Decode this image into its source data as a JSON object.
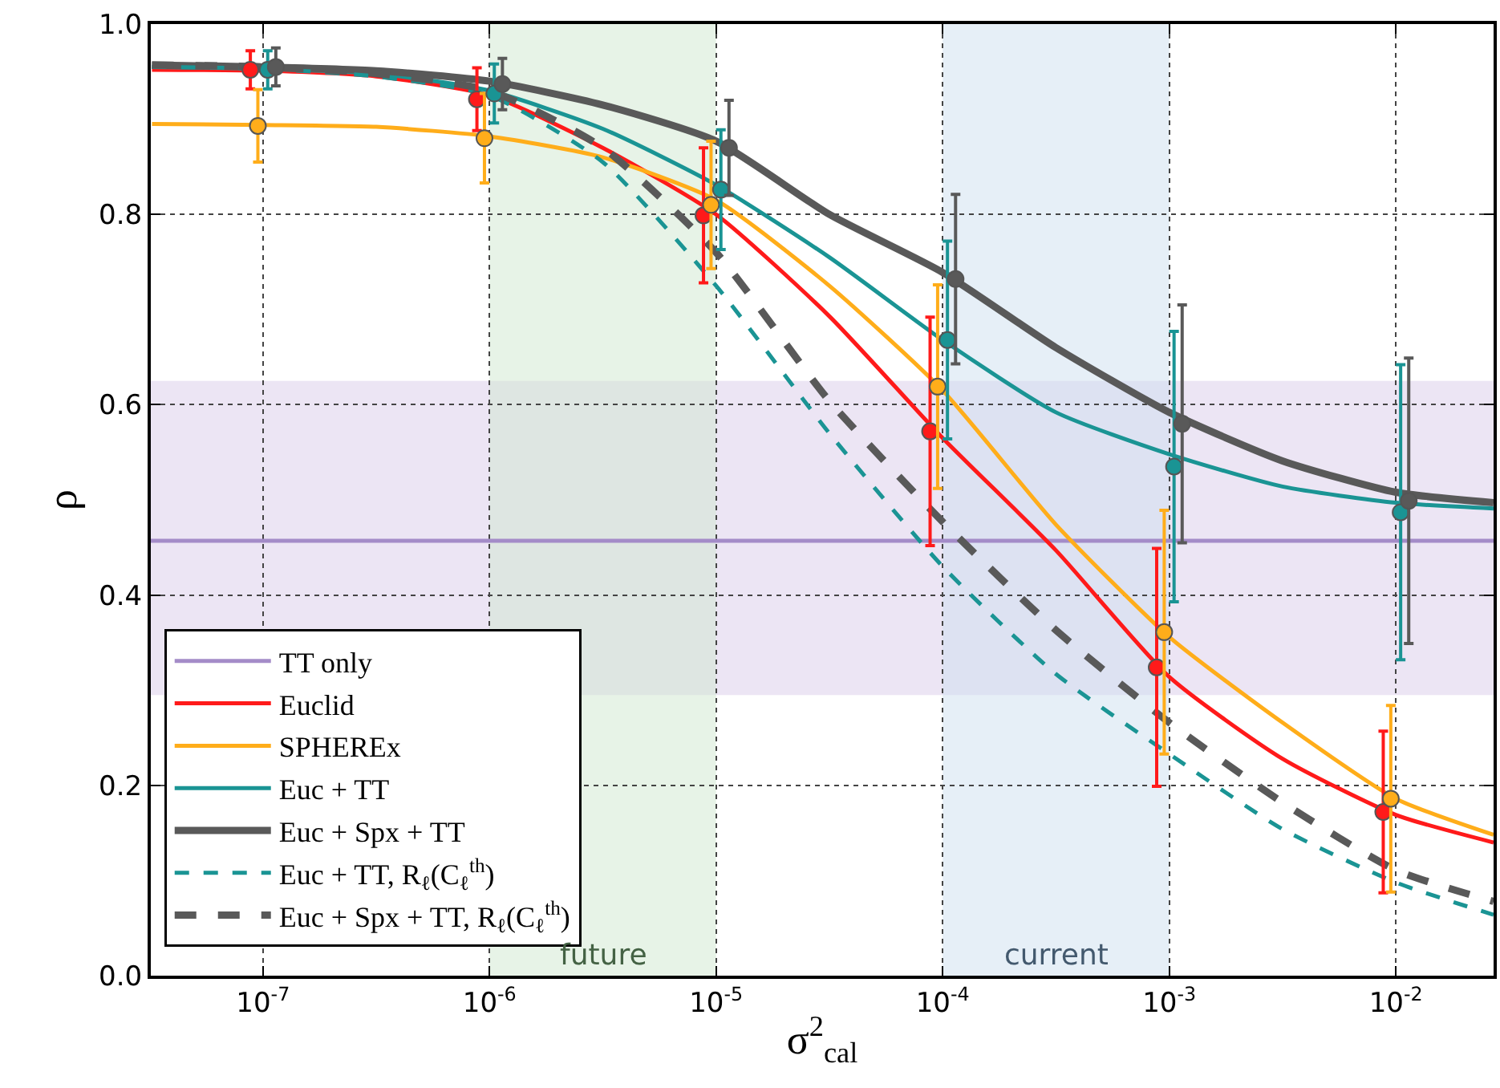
{
  "chart_data": {
    "type": "line",
    "xlabel": "σ$^{2}$$_{cal}$",
    "ylabel": "ρ",
    "log": "x",
    "xlim": [
      3.2e-08,
      0.027
    ],
    "xticks": [
      {
        "value": 1e-07,
        "label": "10$^{-7}$"
      },
      {
        "value": 1e-06,
        "label": "10$^{-6}$"
      },
      {
        "value": 1e-05,
        "label": "10$^{-5}$"
      },
      {
        "value": 0.0001,
        "label": "10$^{-4}$"
      },
      {
        "value": 0.001,
        "label": "10$^{-3}$"
      },
      {
        "value": 0.01,
        "label": "10$^{-2}$"
      }
    ],
    "ylim": [
      0,
      1
    ],
    "yticks": [
      {
        "value": 0,
        "label": "0.0"
      },
      {
        "value": 0.2,
        "label": "0.2"
      },
      {
        "value": 0.4,
        "label": "0.4"
      },
      {
        "value": 0.6,
        "label": "0.6"
      },
      {
        "value": 0.8,
        "label": "0.8"
      },
      {
        "value": 1,
        "label": "1.0"
      }
    ],
    "grid": true,
    "legend": "bottom left",
    "bands": [
      {
        "axis": "y",
        "from": 0.295,
        "to": 0.625,
        "color": "#d9cbe9"
      },
      {
        "axis": "x",
        "from": 1e-06,
        "to": 1e-05,
        "label": "future",
        "color": "#cfe8cf"
      },
      {
        "axis": "x",
        "from": 0.0001,
        "to": 0.001,
        "label": "current",
        "color": "#cddff0"
      }
    ],
    "series": [
      {
        "name": "TT only",
        "color": "#a48cc8",
        "line_style": "solid",
        "marker": "none",
        "x": [
          3.2e-08,
          0.027
        ],
        "values": [
          0.457,
          0.457
        ]
      },
      {
        "name": "Euclid",
        "color": "#ff1a1a",
        "line_style": "solid",
        "marker": "none",
        "x": [
          3.24e-08,
          1e-07,
          3.16e-07,
          1e-06,
          3.16e-06,
          1e-05,
          3.16e-05,
          0.0001,
          0.000316,
          0.001,
          0.00316,
          0.01,
          0.027
        ],
        "values": [
          0.952,
          0.951,
          0.945,
          0.925,
          0.87,
          0.8,
          0.693,
          0.565,
          0.447,
          0.314,
          0.228,
          0.169,
          0.14
        ]
      },
      {
        "name": "SPHEREx",
        "color": "#ffad1a",
        "line_style": "solid",
        "marker": "none",
        "x": [
          3.24e-08,
          1e-07,
          3.16e-07,
          1e-06,
          3.16e-06,
          1e-05,
          3.16e-05,
          0.0001,
          0.000316,
          0.001,
          0.00316,
          0.01,
          0.027
        ],
        "values": [
          0.895,
          0.894,
          0.892,
          0.882,
          0.86,
          0.815,
          0.725,
          0.615,
          0.474,
          0.356,
          0.266,
          0.186,
          0.148
        ]
      },
      {
        "name": "Euc + TT",
        "color": "#1a9494",
        "line_style": "solid",
        "marker": "none",
        "x": [
          3.24e-08,
          1e-07,
          3.16e-07,
          1e-06,
          3.16e-06,
          1e-05,
          3.16e-05,
          0.0001,
          0.000316,
          0.001,
          0.00316,
          0.01,
          0.027
        ],
        "values": [
          0.955,
          0.953,
          0.948,
          0.93,
          0.89,
          0.831,
          0.755,
          0.668,
          0.592,
          0.548,
          0.514,
          0.497,
          0.491
        ]
      },
      {
        "name": "Euc + Spx + TT",
        "color": "#595959",
        "line_style": "solid",
        "marker": "none",
        "x": [
          3.24e-08,
          1e-07,
          3.16e-07,
          1e-06,
          3.16e-06,
          1e-05,
          3.16e-05,
          0.0001,
          0.000316,
          0.001,
          0.00316,
          0.01,
          0.027
        ],
        "values": [
          0.957,
          0.955,
          0.951,
          0.94,
          0.915,
          0.877,
          0.8,
          0.739,
          0.66,
          0.592,
          0.541,
          0.508,
          0.497
        ]
      },
      {
        "name": "Euc + TT, R$_{ℓ}$(C$_{ℓ}$$^{th}$)",
        "color": "#1a9494",
        "line_style": "dashed",
        "marker": "none",
        "x": [
          3.24e-08,
          1e-07,
          3.16e-07,
          1e-06,
          3.16e-06,
          1e-05,
          3.16e-05,
          0.0001,
          0.000316,
          0.001,
          0.00316,
          0.01,
          0.027
        ],
        "values": [
          0.955,
          0.953,
          0.945,
          0.925,
          0.855,
          0.725,
          0.57,
          0.43,
          0.317,
          0.233,
          0.154,
          0.098,
          0.064
        ]
      },
      {
        "name": "Euc + Spx + TT, R$_{ℓ}$(C$_{ℓ}$$^{th}$)",
        "color": "#595959",
        "line_style": "dashed",
        "marker": "none",
        "x": [
          3.24e-08,
          1e-07,
          3.16e-07,
          1e-06,
          3.16e-06,
          1e-05,
          3.16e-05,
          0.0001,
          0.000316,
          0.001,
          0.00316,
          0.01,
          0.027
        ],
        "values": [
          0.957,
          0.955,
          0.948,
          0.93,
          0.87,
          0.76,
          0.604,
          0.477,
          0.363,
          0.266,
          0.182,
          0.111,
          0.078
        ]
      },
      {
        "type": "scatter",
        "color": "#ff1a1a",
        "marker": "circle",
        "x": [
          8.8e-08,
          8.8e-07,
          8.8e-06,
          8.8e-05,
          0.00088,
          0.0088
        ],
        "values": [
          0.952,
          0.921,
          0.799,
          0.572,
          0.324,
          0.172
        ],
        "errors": [
          0.02,
          0.033,
          0.071,
          0.12,
          0.125,
          0.085
        ]
      },
      {
        "type": "scatter",
        "color": "#ffad1a",
        "marker": "circle",
        "x": [
          9.5e-08,
          9.5e-07,
          9.5e-06,
          9.5e-05,
          0.00095,
          0.0095
        ],
        "values": [
          0.893,
          0.88,
          0.81,
          0.619,
          0.361,
          0.186
        ],
        "errors": [
          0.038,
          0.047,
          0.067,
          0.107,
          0.128,
          0.098
        ]
      },
      {
        "type": "scatter",
        "color": "#1a9494",
        "marker": "circle",
        "x": [
          1.05e-07,
          1.05e-06,
          1.05e-05,
          0.000105,
          0.00105,
          0.0105
        ],
        "values": [
          0.952,
          0.927,
          0.826,
          0.668,
          0.535,
          0.487
        ],
        "errors": [
          0.02,
          0.031,
          0.063,
          0.104,
          0.142,
          0.155
        ]
      },
      {
        "type": "scatter",
        "color": "#595959",
        "marker": "circle",
        "x": [
          1.14e-07,
          1.14e-06,
          1.14e-05,
          0.000114,
          0.00114,
          0.0114
        ],
        "values": [
          0.955,
          0.937,
          0.87,
          0.732,
          0.58,
          0.499
        ],
        "errors": [
          0.02,
          0.027,
          0.05,
          0.089,
          0.125,
          0.15
        ]
      }
    ]
  }
}
